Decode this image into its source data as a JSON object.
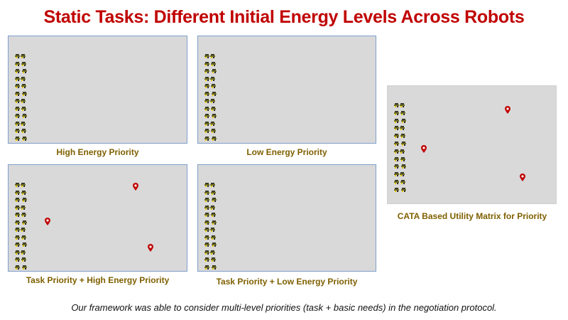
{
  "title": "Static Tasks: Different Initial Energy Levels Across Robots",
  "panels": [
    {
      "label": "High Energy Priority",
      "has_tasks": false
    },
    {
      "label": "Low Energy Priority",
      "has_tasks": false
    },
    {
      "label": "Task Priority + High Energy Priority",
      "has_tasks": true
    },
    {
      "label": "Task Priority + Low Energy Priority",
      "has_tasks": false
    },
    {
      "label": "CATA Based Utility Matrix for Priority",
      "has_tasks": true
    }
  ],
  "footer": "Our framework was able to consider multi-level priorities (task + basic needs) in the negotiation protocol.",
  "colors": {
    "title": "#c00000",
    "label": "#7f6000",
    "panel": "#d9d9d9",
    "marker": "#c00000"
  },
  "icons": {
    "robot": "robot-icon",
    "task": "task-marker-icon"
  }
}
